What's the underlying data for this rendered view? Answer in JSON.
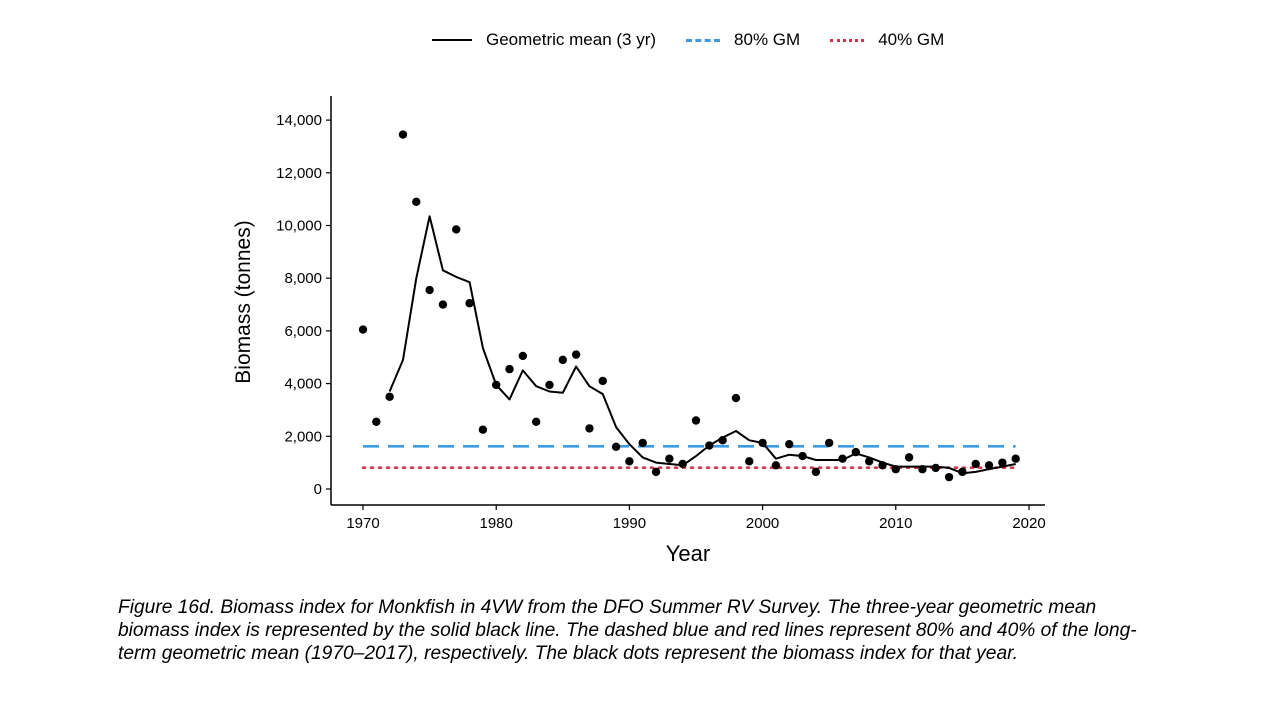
{
  "legend": {
    "items": [
      {
        "label": "Geometric mean (3 yr)",
        "style": "solid",
        "color": "#000000"
      },
      {
        "label": "80% GM",
        "style": "dashed",
        "color": "#3d9ae0"
      },
      {
        "label": "40% GM",
        "style": "dotted",
        "color": "#d6334a"
      }
    ]
  },
  "caption": "Figure 16d. Biomass index for Monkfish in 4VW from the DFO Summer RV Survey. The three-year geometric mean biomass index is represented by the solid black line. The dashed blue and red lines represent 80% and 40% of the long-term geometric mean (1970–2017), respectively. The black dots represent the biomass index for that year.",
  "chart_data": {
    "type": "scatter",
    "xlabel": "Year",
    "ylabel": "Biomass (tonnes)",
    "xlim": [
      1968,
      2021
    ],
    "ylim": [
      -500,
      14800
    ],
    "xticks": [
      1970,
      1980,
      1990,
      2000,
      2010,
      2020
    ],
    "yticks": [
      0,
      2000,
      4000,
      6000,
      8000,
      10000,
      12000,
      14000
    ],
    "ytick_labels": [
      "0",
      "2,000",
      "4,000",
      "6,000",
      "8,000",
      "10,000",
      "12,000",
      "14,000"
    ],
    "grid": false,
    "legend_position": "top",
    "series": [
      {
        "name": "Biomass index",
        "kind": "points",
        "color": "#000000",
        "x": [
          1970,
          1971,
          1972,
          1973,
          1974,
          1975,
          1976,
          1977,
          1978,
          1979,
          1980,
          1981,
          1982,
          1983,
          1984,
          1985,
          1986,
          1987,
          1988,
          1989,
          1990,
          1991,
          1992,
          1993,
          1994,
          1995,
          1996,
          1997,
          1998,
          1999,
          2000,
          2001,
          2002,
          2003,
          2004,
          2005,
          2006,
          2007,
          2008,
          2009,
          2010,
          2011,
          2012,
          2013,
          2014,
          2015,
          2016,
          2017,
          2018,
          2019
        ],
        "y": [
          6050,
          2550,
          3500,
          13450,
          10900,
          7550,
          7000,
          9850,
          7050,
          2250,
          3950,
          4550,
          5050,
          2550,
          3950,
          4900,
          5100,
          2300,
          4100,
          1600,
          1050,
          1750,
          650,
          1150,
          950,
          2600,
          1650,
          1850,
          3450,
          1050,
          1750,
          900,
          1700,
          1250,
          650,
          1750,
          1150,
          1400,
          1050,
          900,
          750,
          1200,
          750,
          800,
          450,
          650,
          950,
          900,
          1000,
          1150
        ]
      },
      {
        "name": "Geometric mean (3 yr)",
        "kind": "line",
        "color": "#000000",
        "x": [
          1972,
          1973,
          1974,
          1975,
          1976,
          1977,
          1978,
          1979,
          1980,
          1981,
          1982,
          1983,
          1984,
          1985,
          1986,
          1987,
          1988,
          1989,
          1990,
          1991,
          1992,
          1993,
          1994,
          1995,
          1996,
          1997,
          1998,
          1999,
          2000,
          2001,
          2002,
          2003,
          2004,
          2005,
          2006,
          2007,
          2008,
          2009,
          2010,
          2011,
          2012,
          2013,
          2014,
          2015,
          2016,
          2017,
          2018,
          2019
        ],
        "y": [
          3700,
          4900,
          8000,
          10350,
          8300,
          8050,
          7850,
          5350,
          3950,
          3400,
          4500,
          3900,
          3700,
          3650,
          4650,
          3900,
          3600,
          2350,
          1700,
          1200,
          1000,
          950,
          900,
          1250,
          1650,
          1950,
          2200,
          1850,
          1750,
          1150,
          1300,
          1250,
          1100,
          1100,
          1100,
          1350,
          1200,
          1000,
          850,
          850,
          850,
          850,
          800,
          600,
          650,
          750,
          850,
          950
        ]
      },
      {
        "name": "80% GM",
        "kind": "hline",
        "color": "#3d9ae0",
        "x": [
          1970,
          2019
        ],
        "y": [
          1620,
          1620
        ]
      },
      {
        "name": "40% GM",
        "kind": "hline",
        "color": "#d6334a",
        "x": [
          1970,
          2019
        ],
        "y": [
          810,
          810
        ]
      }
    ]
  }
}
